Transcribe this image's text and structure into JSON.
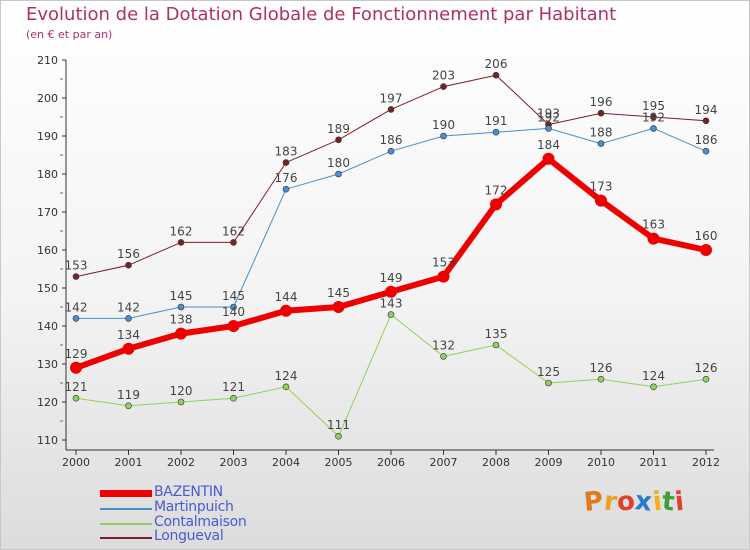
{
  "title": "Evolution de la Dotation Globale de Fonctionnement par Habitant",
  "subtitle": "(en € et par an)",
  "logo": {
    "text": "Proxiti",
    "letters": [
      "P",
      "r",
      "o",
      "x",
      "i",
      "t",
      "i"
    ],
    "colors": [
      "#e07a1a",
      "#f0a020",
      "#e0402a",
      "#2a7ad0",
      "#f0b020",
      "#3aa03a",
      "#e0402a"
    ]
  },
  "chart_data": {
    "type": "line",
    "title": "Evolution de la Dotation Globale de Fonctionnement par Habitant",
    "subtitle": "(en € et par an)",
    "x": [
      "2000",
      "2001",
      "2002",
      "2003",
      "2004",
      "2005",
      "2006",
      "2007",
      "2008",
      "2009",
      "2010",
      "2011",
      "2012"
    ],
    "ylim": [
      110,
      210
    ],
    "yticks": [
      110,
      120,
      130,
      140,
      150,
      160,
      170,
      180,
      190,
      200,
      210
    ],
    "grid": false,
    "legend_position": "bottom-left",
    "series": [
      {
        "name": "Longueval",
        "color": "#7a2028",
        "width": 1,
        "values": [
          153,
          156,
          162,
          162,
          183,
          189,
          197,
          203,
          206,
          193,
          196,
          195,
          194
        ]
      },
      {
        "name": "Martinpuich",
        "color": "#4a8ed0",
        "width": 1,
        "values": [
          142,
          142,
          145,
          145,
          176,
          180,
          186,
          190,
          191,
          192,
          188,
          192,
          186
        ]
      },
      {
        "name": "Contalmaison",
        "color": "#90d060",
        "width": 1,
        "values": [
          121,
          119,
          120,
          121,
          124,
          111,
          143,
          132,
          135,
          125,
          126,
          124,
          126
        ]
      },
      {
        "name": "BAZENTIN",
        "color": "#ee0000",
        "width": 6,
        "values": [
          129,
          134,
          138,
          140,
          144,
          145,
          149,
          153,
          172,
          184,
          173,
          163,
          160
        ]
      }
    ],
    "legend_order": [
      "BAZENTIN",
      "Martinpuich",
      "Contalmaison",
      "Longueval"
    ]
  }
}
